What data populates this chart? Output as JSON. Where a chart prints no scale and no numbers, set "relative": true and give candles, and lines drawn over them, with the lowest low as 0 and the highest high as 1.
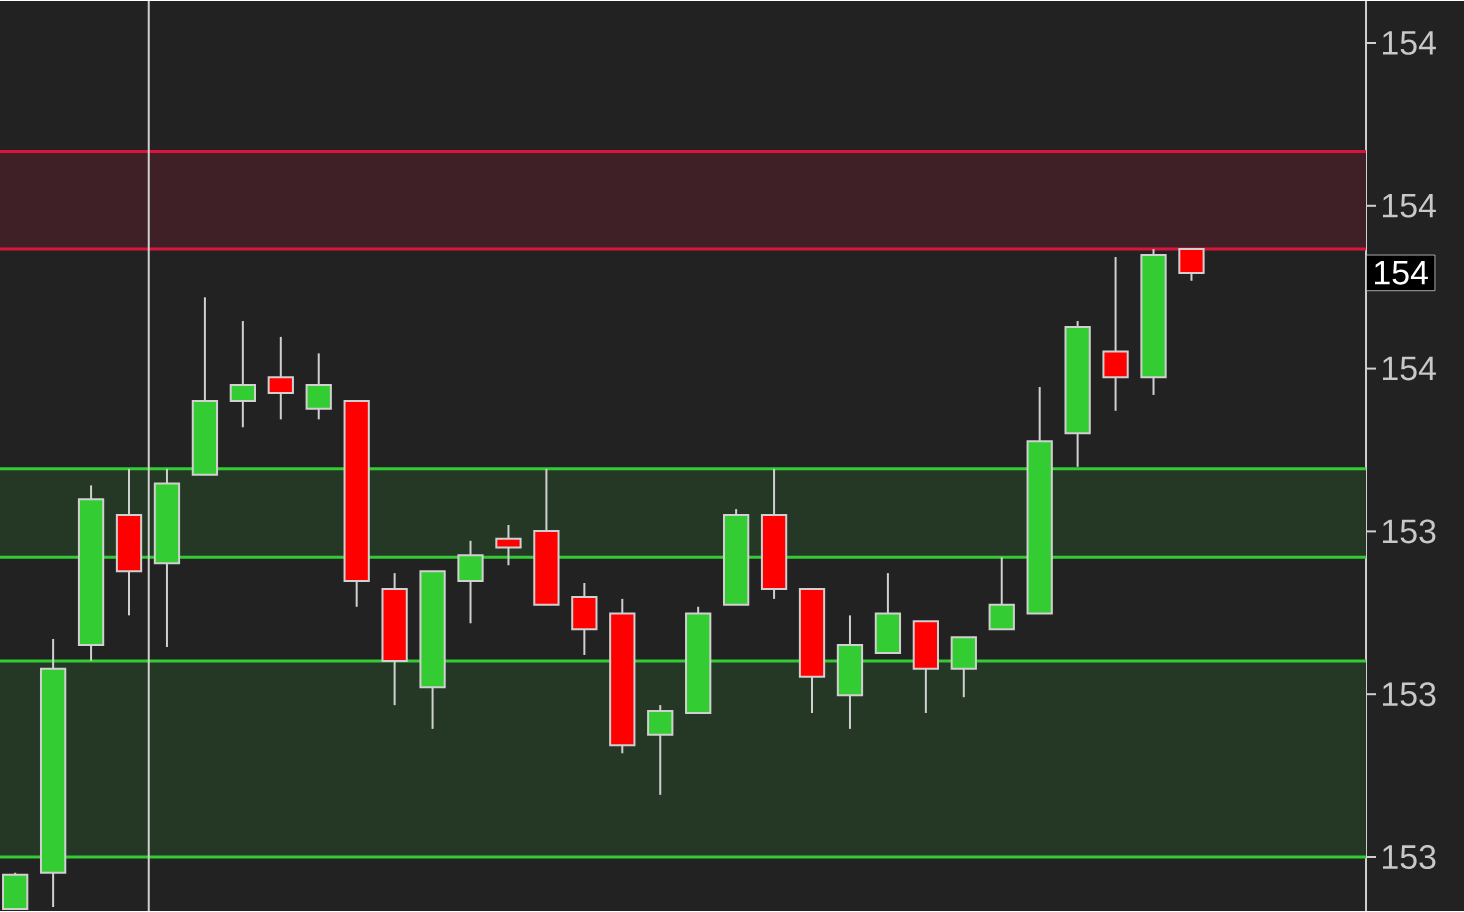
{
  "chart_data": {
    "type": "candlestick",
    "relative": true,
    "categories": [
      null,
      null,
      null,
      null,
      null,
      null,
      null,
      null,
      null,
      null,
      null,
      null,
      null,
      null,
      null,
      null,
      null,
      null,
      null,
      null,
      null,
      null,
      null,
      null,
      null,
      null,
      null,
      null,
      null,
      null,
      null,
      null
    ],
    "ohlc": [
      [
        0,
        0.055,
        0,
        0.052
      ],
      [
        0.055,
        0.409,
        0.003,
        0.364
      ],
      [
        0.4,
        0.642,
        0.376,
        0.621
      ],
      [
        0.597,
        0.667,
        0.445,
        0.512
      ],
      [
        0.524,
        0.667,
        0.397,
        0.645
      ],
      [
        0.658,
        0.927,
        0.658,
        0.77
      ],
      [
        0.77,
        0.891,
        0.73,
        0.794
      ],
      [
        0.806,
        0.867,
        0.742,
        0.782
      ],
      [
        0.758,
        0.842,
        0.742,
        0.794
      ],
      [
        0.77,
        0.77,
        0.458,
        0.497
      ],
      [
        0.485,
        0.509,
        0.309,
        0.376
      ],
      [
        0.336,
        0.512,
        0.273,
        0.512
      ],
      [
        0.497,
        0.558,
        0.433,
        0.536
      ],
      [
        0.561,
        0.582,
        0.521,
        0.548
      ],
      [
        0.573,
        0.667,
        0.461,
        0.461
      ],
      [
        0.473,
        0.494,
        0.385,
        0.424
      ],
      [
        0.448,
        0.47,
        0.236,
        0.248
      ],
      [
        0.264,
        0.309,
        0.173,
        0.3
      ],
      [
        0.297,
        0.458,
        0.297,
        0.448
      ],
      [
        0.461,
        0.606,
        0.461,
        0.597
      ],
      [
        0.597,
        0.667,
        0.47,
        0.485
      ],
      [
        0.485,
        0.485,
        0.297,
        0.352
      ],
      [
        0.324,
        0.445,
        0.273,
        0.4
      ],
      [
        0.388,
        0.509,
        0.388,
        0.448
      ],
      [
        0.436,
        0.436,
        0.297,
        0.364
      ],
      [
        0.364,
        0.412,
        0.321,
        0.412
      ],
      [
        0.424,
        0.533,
        0.424,
        0.461
      ],
      [
        0.448,
        0.791,
        0.448,
        0.709
      ],
      [
        0.721,
        0.891,
        0.67,
        0.882
      ],
      [
        0.845,
        0.988,
        0.755,
        0.806
      ],
      [
        0.806,
        1,
        0.779,
        0.991
      ],
      [
        1,
        1,
        0.952,
        0.964
      ]
    ],
    "colors": [
      "#33cc33",
      "#33cc33",
      "#33cc33",
      "#ff0000",
      "#33cc33",
      "#33cc33",
      "#33cc33",
      "#ff0000",
      "#33cc33",
      "#ff0000",
      "#ff0000",
      "#33cc33",
      "#33cc33",
      "#ff0000",
      "#ff0000",
      "#ff0000",
      "#ff0000",
      "#33cc33",
      "#33cc33",
      "#33cc33",
      "#ff0000",
      "#ff0000",
      "#33cc33",
      "#33cc33",
      "#ff0000",
      "#33cc33",
      "#33cc33",
      "#33cc33",
      "#33cc33",
      "#ff0000",
      "#33cc33",
      "#ff0000"
    ],
    "bands": [
      {
        "axis": "y",
        "from": 1.0,
        "to": 1.148,
        "color": "#3e2026"
      },
      {
        "axis": "y",
        "from": 0.533,
        "to": 0.667,
        "color": "#253826"
      },
      {
        "axis": "y",
        "from": 0.079,
        "to": 0.376,
        "color": "#253826"
      }
    ],
    "ref_lines": [
      {
        "axis": "y",
        "value": 1.0,
        "color": "#dc143c"
      },
      {
        "axis": "y",
        "value": 1.148,
        "color": "#dc143c"
      },
      {
        "axis": "y",
        "value": 0.533,
        "color": "#33cc33"
      },
      {
        "axis": "y",
        "value": 0.667,
        "color": "#33cc33"
      },
      {
        "axis": "y",
        "value": 0.079,
        "color": "#33cc33"
      },
      {
        "axis": "y",
        "value": 0.376,
        "color": "#33cc33"
      }
    ],
    "annotations": [
      "154",
      "154",
      "154",
      "154",
      "153",
      "153",
      "153"
    ]
  }
}
